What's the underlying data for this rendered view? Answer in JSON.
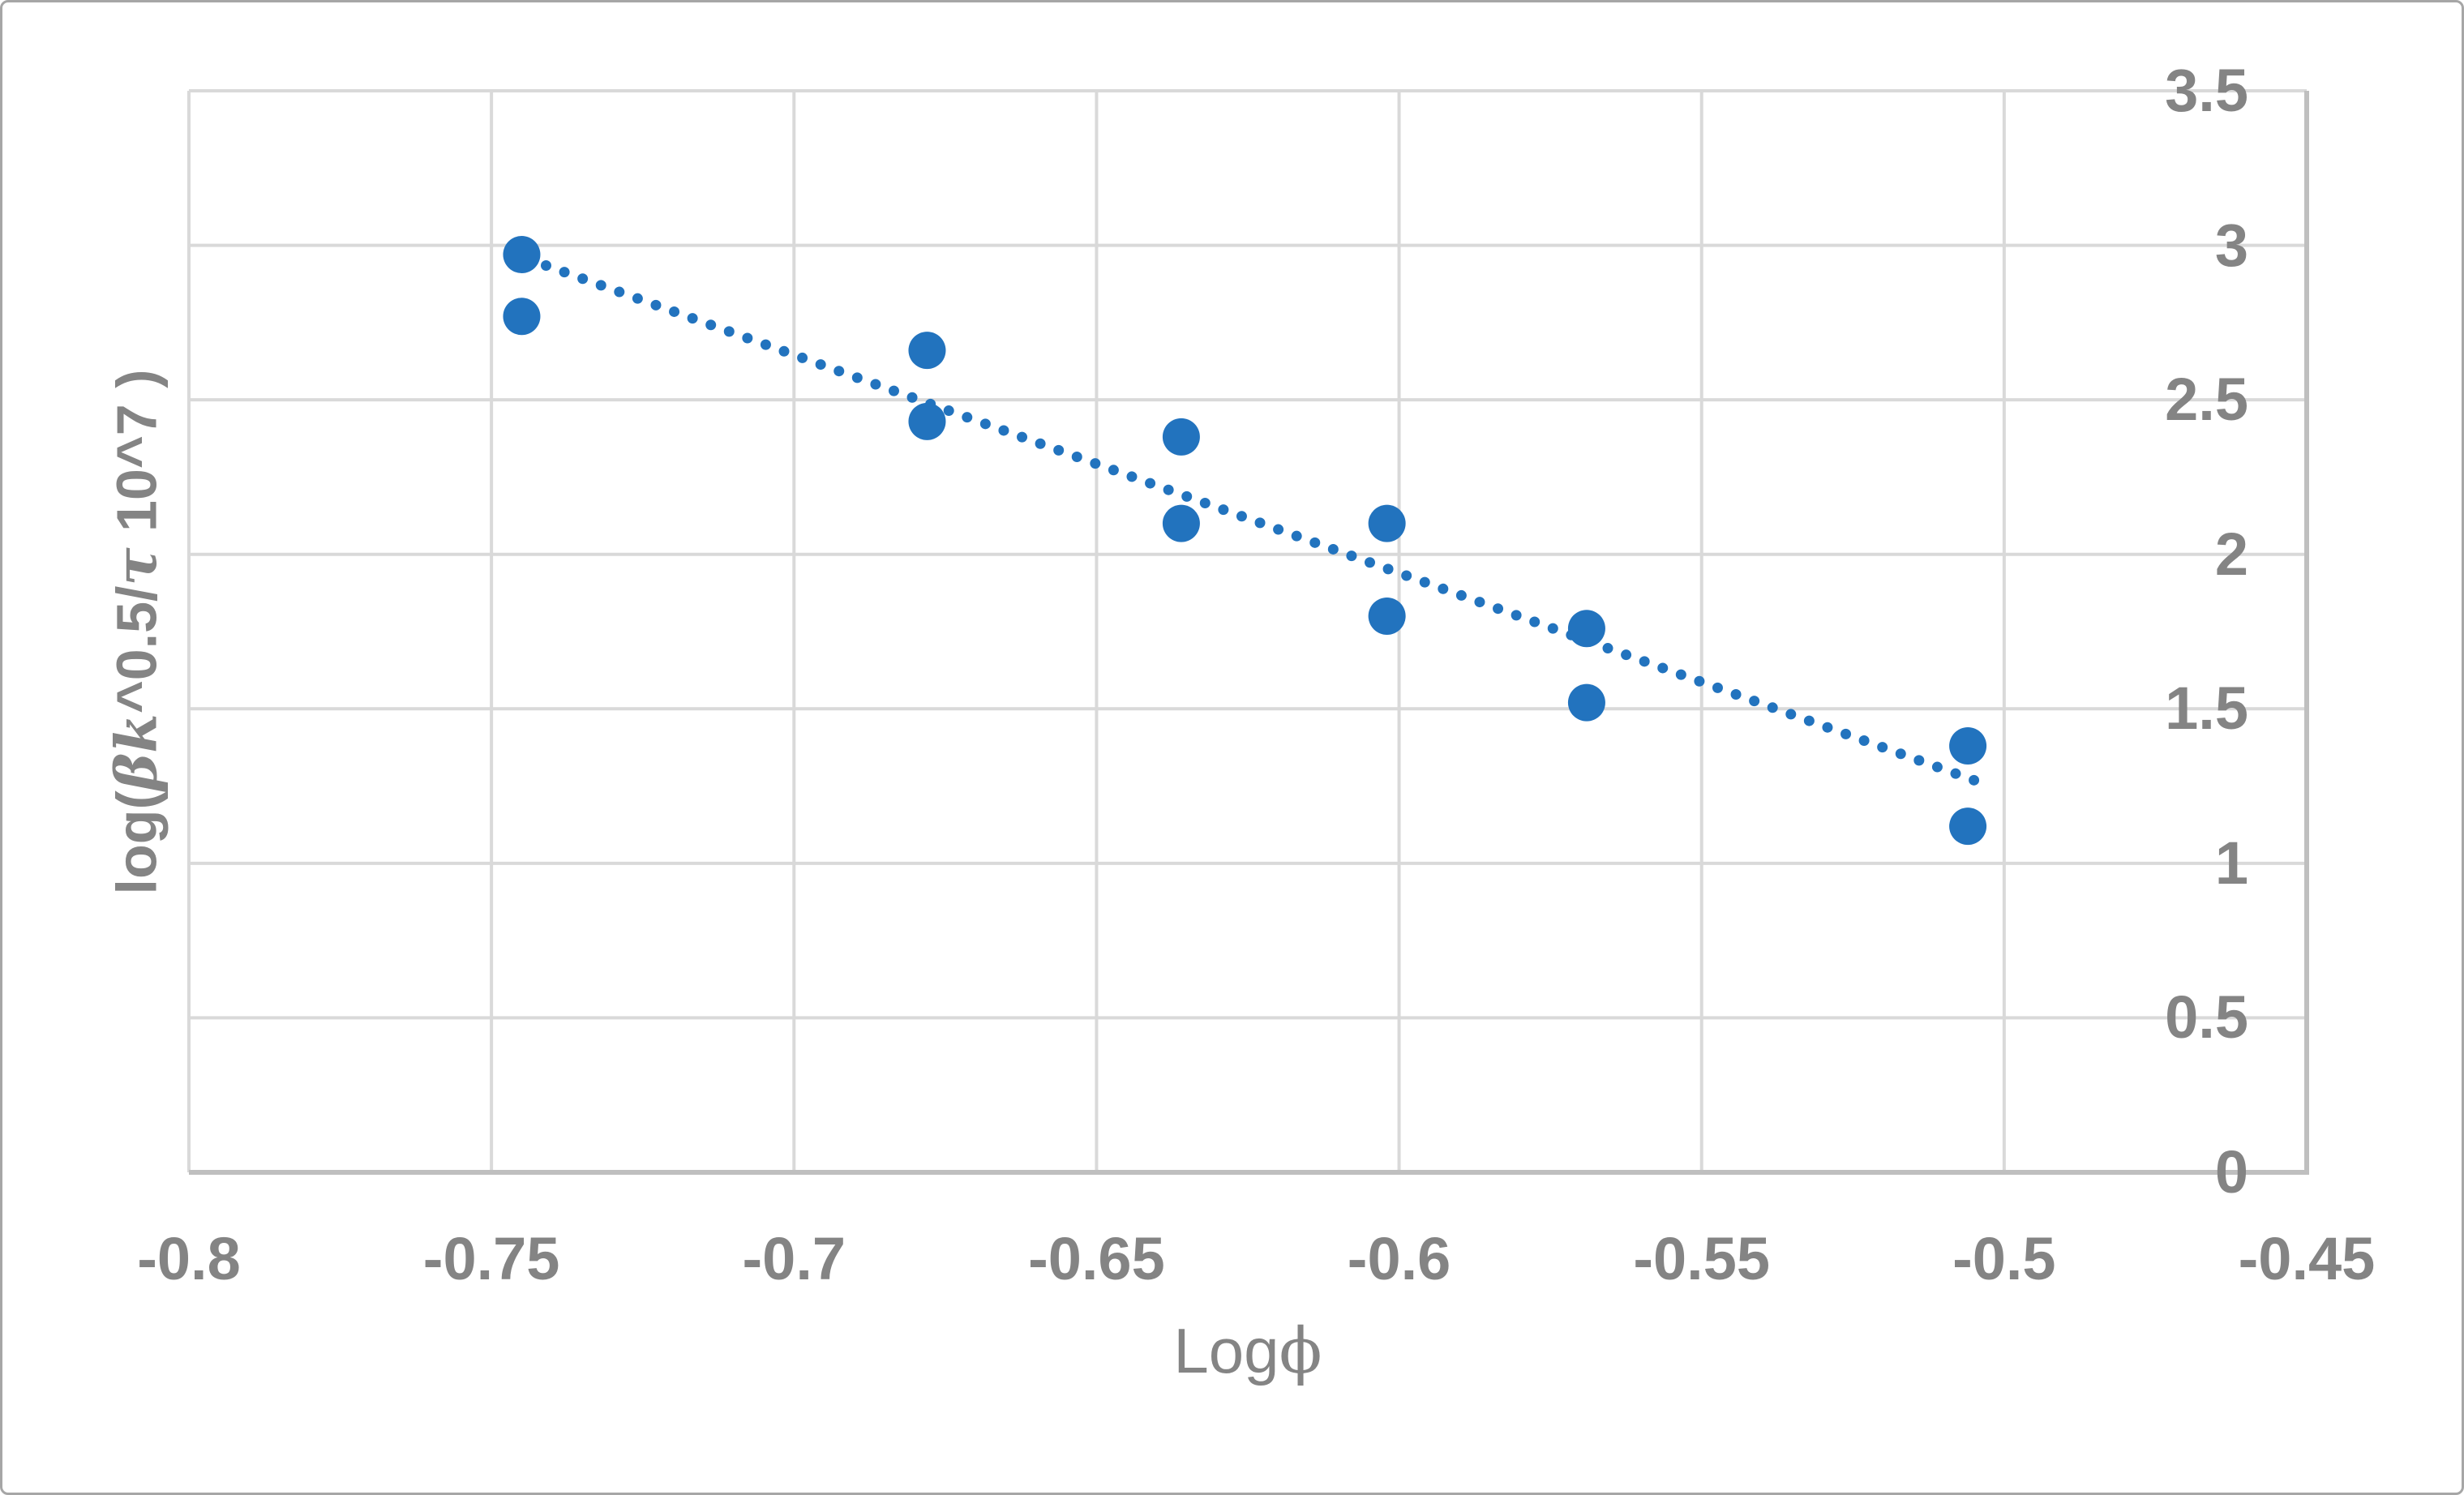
{
  "figure": {
    "background": "#ffffff",
    "border_color": "#a6a6a6"
  },
  "chart_data": {
    "type": "scatter",
    "title": "",
    "xlabel": {
      "prefix": "Log",
      "symbol": "ϕ"
    },
    "ylabel_parts": [
      {
        "text": "log(",
        "italic": false
      },
      {
        "text": "βk",
        "italic": true
      },
      {
        "text": "^0.5/",
        "italic": false
      },
      {
        "text": "τ",
        "italic": true
      },
      {
        "text": " 10^7 )",
        "italic": false
      }
    ],
    "x_axis": {
      "side": "bottom",
      "min": -0.8,
      "max": -0.45,
      "tick_step": 0.05,
      "ticks": [
        {
          "v": -0.8,
          "label": "-0.8"
        },
        {
          "v": -0.75,
          "label": "-0.75"
        },
        {
          "v": -0.7,
          "label": "-0.7"
        },
        {
          "v": -0.65,
          "label": "-0.65"
        },
        {
          "v": -0.6,
          "label": "-0.6"
        },
        {
          "v": -0.55,
          "label": "-0.55"
        },
        {
          "v": -0.5,
          "label": "-0.5"
        },
        {
          "v": -0.45,
          "label": "-0.45"
        }
      ]
    },
    "y_axis": {
      "side": "right",
      "min": 0,
      "max": 3.5,
      "tick_step": 0.5,
      "ticks": [
        {
          "v": 0,
          "label": "0"
        },
        {
          "v": 0.5,
          "label": "0.5"
        },
        {
          "v": 1,
          "label": "1"
        },
        {
          "v": 1.5,
          "label": "1.5"
        },
        {
          "v": 2,
          "label": "2"
        },
        {
          "v": 2.5,
          "label": "2.5"
        },
        {
          "v": 3,
          "label": "3"
        },
        {
          "v": 3.5,
          "label": "3.5"
        }
      ]
    },
    "grid": true,
    "gridline_color": "#d9d9d9",
    "axis_line_color": "#bfbfbf",
    "tick_label_color": "#848484",
    "series": [
      {
        "name": "series-1",
        "marker": "circle",
        "marker_color": "#2273be",
        "marker_radius_px": 23,
        "points": [
          {
            "x": -0.745,
            "y": 2.97
          },
          {
            "x": -0.745,
            "y": 2.77
          },
          {
            "x": -0.678,
            "y": 2.66
          },
          {
            "x": -0.678,
            "y": 2.43
          },
          {
            "x": -0.636,
            "y": 2.38
          },
          {
            "x": -0.636,
            "y": 2.1
          },
          {
            "x": -0.602,
            "y": 2.1
          },
          {
            "x": -0.602,
            "y": 1.8
          },
          {
            "x": -0.569,
            "y": 1.76
          },
          {
            "x": -0.569,
            "y": 1.52
          },
          {
            "x": -0.506,
            "y": 1.38
          },
          {
            "x": -0.506,
            "y": 1.12
          }
        ]
      }
    ],
    "trendline": {
      "style": "dotted",
      "color": "#2273be",
      "x1": -0.744,
      "y1": 2.956,
      "x2": -0.504,
      "y2": 1.262
    }
  }
}
